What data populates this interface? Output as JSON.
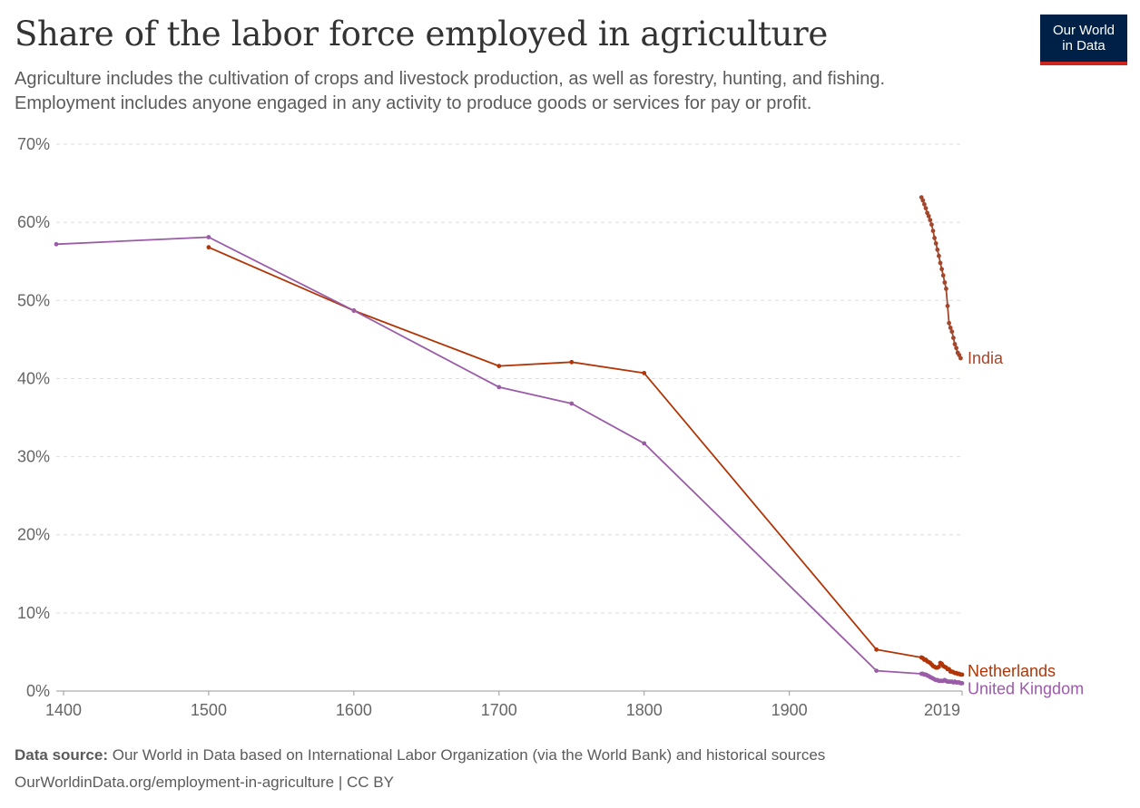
{
  "header": {
    "title": "Share of the labor force employed in agriculture",
    "subtitle_line1": "Agriculture includes the cultivation of crops and livestock production, as well as forestry, hunting, and fishing.",
    "subtitle_line2": "Employment includes anyone engaged in any activity to produce goods or services for pay or profit."
  },
  "logo": {
    "line1": "Our World",
    "line2": "in Data",
    "bg_color": "#002147",
    "accent_color": "#ce261e"
  },
  "footer": {
    "source_label": "Data source:",
    "source_text": "Our World in Data based on International Labor Organization (via the World Bank) and historical sources",
    "url_license": "OurWorldinData.org/employment-in-agriculture | CC BY"
  },
  "chart_data": {
    "type": "line",
    "title": "Share of the labor force employed in agriculture",
    "x_ticks": [
      "1400",
      "1500",
      "1600",
      "1700",
      "1800",
      "1900",
      "2019"
    ],
    "y_ticks": [
      "0%",
      "10%",
      "20%",
      "30%",
      "40%",
      "50%",
      "60%",
      "70%"
    ],
    "xlim": [
      1395,
      2019
    ],
    "ylim": [
      0,
      70
    ],
    "grid": "horizontal dashed",
    "legend": "inline labels at line ends",
    "series": [
      {
        "name": "India",
        "color": "#a2472c",
        "points": [
          [
            1991,
            63.2
          ],
          [
            1992,
            62.8
          ],
          [
            1993,
            62.3
          ],
          [
            1994,
            61.8
          ],
          [
            1995,
            61.2
          ],
          [
            1996,
            60.8
          ],
          [
            1997,
            60.3
          ],
          [
            1998,
            59.7
          ],
          [
            1999,
            58.9
          ],
          [
            2000,
            58.0
          ],
          [
            2001,
            57.3
          ],
          [
            2002,
            56.5
          ],
          [
            2003,
            55.7
          ],
          [
            2004,
            54.8
          ],
          [
            2005,
            54.0
          ],
          [
            2006,
            53.2
          ],
          [
            2007,
            52.3
          ],
          [
            2008,
            51.5
          ],
          [
            2009,
            49.3
          ],
          [
            2010,
            47.1
          ],
          [
            2011,
            46.5
          ],
          [
            2012,
            46.0
          ],
          [
            2013,
            45.2
          ],
          [
            2014,
            44.4
          ],
          [
            2015,
            43.9
          ],
          [
            2016,
            43.3
          ],
          [
            2017,
            43.0
          ],
          [
            2018,
            42.6
          ]
        ]
      },
      {
        "name": "Netherlands",
        "color": "#b13507",
        "points": [
          [
            1500,
            56.8
          ],
          [
            1600,
            48.7
          ],
          [
            1700,
            41.6
          ],
          [
            1750,
            42.1
          ],
          [
            1800,
            40.7
          ],
          [
            1960,
            5.3
          ],
          [
            1991,
            4.3
          ],
          [
            1992,
            4.2
          ],
          [
            1993,
            4.0
          ],
          [
            1994,
            4.0
          ],
          [
            1995,
            3.8
          ],
          [
            1996,
            3.7
          ],
          [
            1997,
            3.6
          ],
          [
            1998,
            3.4
          ],
          [
            1999,
            3.2
          ],
          [
            2000,
            3.1
          ],
          [
            2001,
            3.0
          ],
          [
            2002,
            3.0
          ],
          [
            2003,
            3.1
          ],
          [
            2004,
            3.6
          ],
          [
            2005,
            3.5
          ],
          [
            2006,
            3.2
          ],
          [
            2007,
            3.1
          ],
          [
            2008,
            3.0
          ],
          [
            2009,
            2.8
          ],
          [
            2010,
            2.8
          ],
          [
            2011,
            2.5
          ],
          [
            2012,
            2.5
          ],
          [
            2013,
            2.4
          ],
          [
            2014,
            2.3
          ],
          [
            2015,
            2.3
          ],
          [
            2016,
            2.2
          ],
          [
            2017,
            2.2
          ],
          [
            2018,
            2.1
          ],
          [
            2019,
            2.1
          ]
        ]
      },
      {
        "name": "United Kingdom",
        "color": "#9a5ba7",
        "points": [
          [
            1395,
            57.2
          ],
          [
            1500,
            58.1
          ],
          [
            1600,
            48.7
          ],
          [
            1700,
            38.9
          ],
          [
            1750,
            36.8
          ],
          [
            1800,
            31.7
          ],
          [
            1960,
            2.6
          ],
          [
            1991,
            2.2
          ],
          [
            1992,
            2.2
          ],
          [
            1993,
            2.1
          ],
          [
            1994,
            2.1
          ],
          [
            1995,
            2.0
          ],
          [
            1996,
            1.9
          ],
          [
            1997,
            1.8
          ],
          [
            1998,
            1.7
          ],
          [
            1999,
            1.6
          ],
          [
            2000,
            1.5
          ],
          [
            2001,
            1.4
          ],
          [
            2002,
            1.4
          ],
          [
            2003,
            1.3
          ],
          [
            2004,
            1.3
          ],
          [
            2005,
            1.3
          ],
          [
            2006,
            1.3
          ],
          [
            2007,
            1.4
          ],
          [
            2008,
            1.3
          ],
          [
            2009,
            1.2
          ],
          [
            2010,
            1.2
          ],
          [
            2011,
            1.2
          ],
          [
            2012,
            1.2
          ],
          [
            2013,
            1.1
          ],
          [
            2014,
            1.2
          ],
          [
            2015,
            1.1
          ],
          [
            2016,
            1.1
          ],
          [
            2017,
            1.1
          ],
          [
            2018,
            1.0
          ],
          [
            2019,
            1.0
          ]
        ]
      }
    ]
  }
}
